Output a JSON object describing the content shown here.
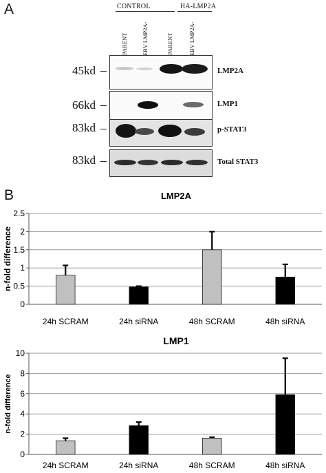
{
  "panel_a": {
    "letter": "A",
    "groups": [
      "CONTROL",
      "HA-LMP2A"
    ],
    "lane_labels": [
      "PARENT",
      "rEBV LMP2A-",
      "PARENT",
      "rEBV LMP2A-"
    ],
    "blots": [
      {
        "mw": "45kd",
        "name": "LMP2A"
      },
      {
        "mw": "66kd",
        "name": "LMP1"
      },
      {
        "mw": "83kd",
        "name": "p-STAT3"
      },
      {
        "mw": "83kd",
        "name": "Total STAT3"
      }
    ]
  },
  "panel_b": {
    "letter": "B"
  },
  "chart_data": [
    {
      "type": "bar",
      "title": "LMP2A",
      "ylabel": "n-fold  difference",
      "categories": [
        "24h SCRAM",
        "24h siRNA",
        "48h SCRAM",
        "48h siRNA"
      ],
      "values": [
        0.8,
        0.48,
        1.5,
        0.75
      ],
      "errors": [
        0.27,
        0.02,
        0.5,
        0.35
      ],
      "colors": [
        "#c0c0c0",
        "#000000",
        "#c0c0c0",
        "#000000"
      ],
      "ylim": [
        0,
        2.5
      ],
      "yticks": [
        "0",
        "0.5",
        "1",
        "1.5",
        "2",
        "2.5"
      ],
      "grid": true
    },
    {
      "type": "bar",
      "title": "LMP1",
      "ylabel": "n-fold difference",
      "categories": [
        "24h SCRAM",
        "24h siRNA",
        "48h SCRAM",
        "48h siRNA"
      ],
      "values": [
        1.35,
        2.85,
        1.6,
        5.9
      ],
      "errors": [
        0.25,
        0.35,
        0.1,
        3.6
      ],
      "colors": [
        "#c0c0c0",
        "#000000",
        "#c0c0c0",
        "#000000"
      ],
      "ylim": [
        0,
        10
      ],
      "yticks": [
        "0",
        "2",
        "4",
        "6",
        "8",
        "10"
      ],
      "grid": true
    }
  ]
}
